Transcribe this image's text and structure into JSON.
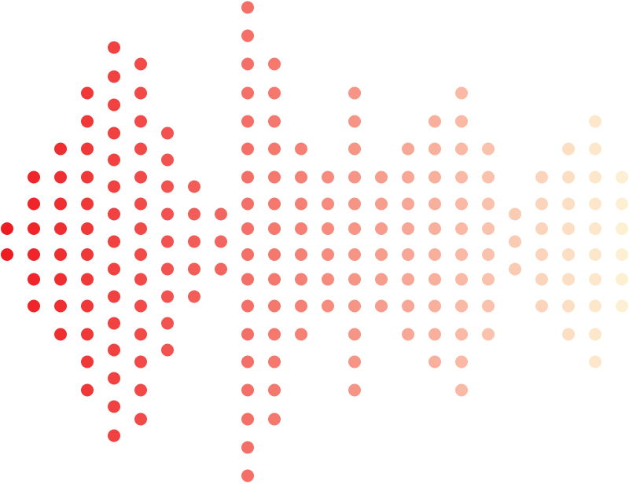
{
  "graphic": {
    "name": "dotted-audio-waveform",
    "gradient": {
      "start_color": "#ee1c22",
      "end_color": "#fdf0d2"
    },
    "columns": [
      {
        "dots": 2
      },
      {
        "dots": 6
      },
      {
        "dots": 8
      },
      {
        "dots": 12
      },
      {
        "dots": 15
      },
      {
        "dots": 14
      },
      {
        "dots": 9
      },
      {
        "dots": 5
      },
      {
        "dots": 3
      },
      {
        "dots": 18
      },
      {
        "dots": 14
      },
      {
        "dots": 8
      },
      {
        "dots": 6
      },
      {
        "dots": 12
      },
      {
        "dots": 6
      },
      {
        "dots": 8
      },
      {
        "dots": 10
      },
      {
        "dots": 12
      },
      {
        "dots": 8
      },
      {
        "dots": 3
      },
      {
        "dots": 6
      },
      {
        "dots": 8
      },
      {
        "dots": 10
      },
      {
        "dots": 6
      }
    ]
  }
}
